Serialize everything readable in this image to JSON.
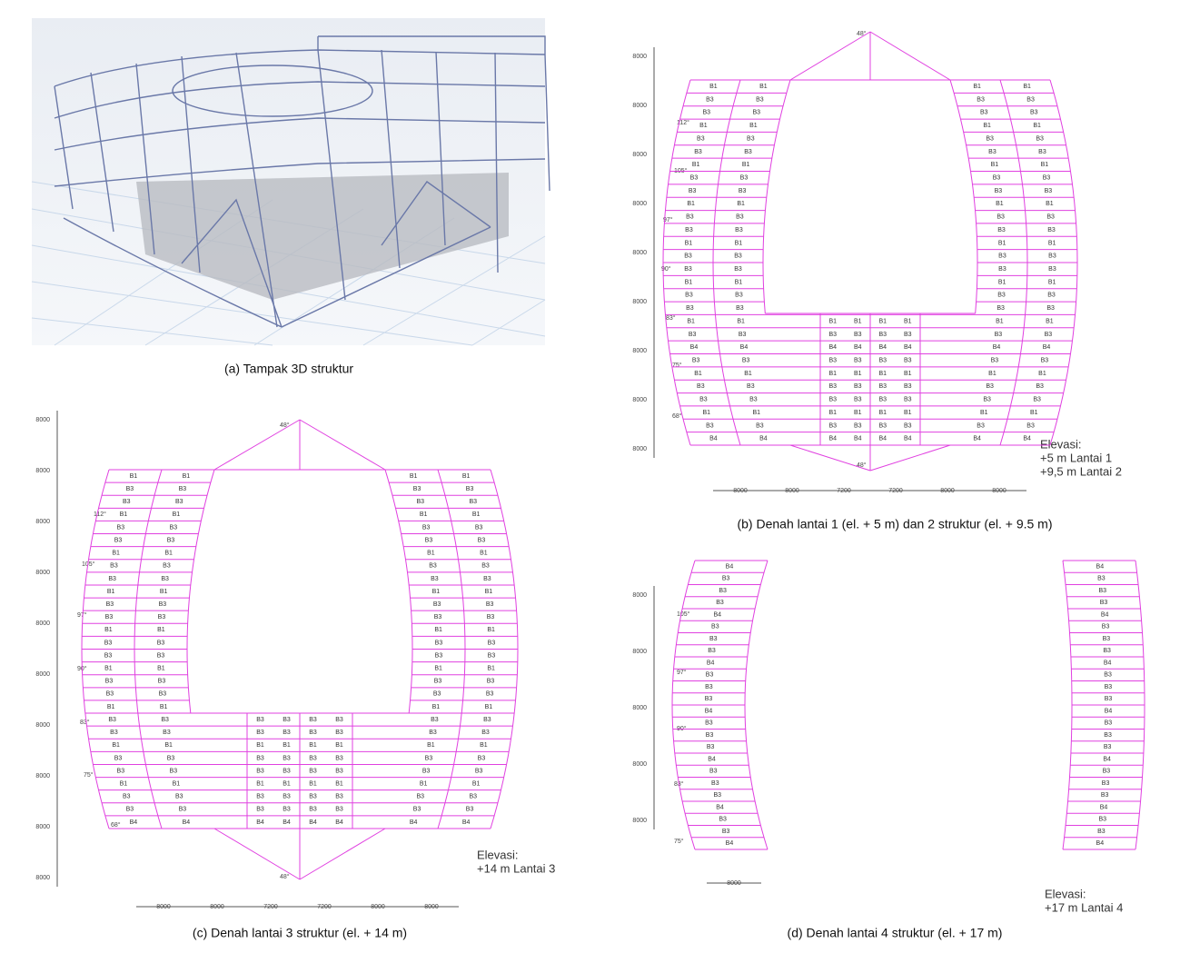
{
  "panels": [
    {
      "caption": "(a) Tampak 3D struktur"
    },
    {
      "caption": "(b) Denah lantai 1 (el. + 5 m) dan 2 struktur (el. + 9.5 m)",
      "elevation": [
        "Elevasi:",
        "+5 m Lantai 1",
        "+9,5 m Lantai 2"
      ],
      "dimensions_vertical": [
        "8000",
        "8000",
        "8000",
        "8000",
        "8000",
        "8000",
        "8000",
        "8000",
        "8000"
      ],
      "dimensions_horizontal": [
        "8000",
        "8000",
        "7200",
        "7200",
        "8000",
        "8000"
      ],
      "angles": [
        "48°",
        "112°",
        "105°",
        "97°",
        "90°",
        "83°",
        "75°",
        "68°",
        "48°"
      ],
      "beams": [
        "B1",
        "B3",
        "B3",
        "B1",
        "B3",
        "B3",
        "B1",
        "B3",
        "B3",
        "B1",
        "B3",
        "B3",
        "B1",
        "B3",
        "B3",
        "B1",
        "B3",
        "B3",
        "B1",
        "B3",
        "B4",
        "B3",
        "B1",
        "B3",
        "B3",
        "B1",
        "B3",
        "B4"
      ]
    },
    {
      "caption": "(c) Denah lantai 3 struktur (el. + 14 m)",
      "elevation": [
        "Elevasi:",
        "+14 m Lantai 3"
      ],
      "dimensions_vertical": [
        "8000",
        "8000",
        "8000",
        "8000",
        "8000",
        "8000",
        "8000",
        "8000",
        "8000",
        "8000"
      ],
      "dimensions_horizontal": [
        "8000",
        "8000",
        "7200",
        "7200",
        "8000",
        "8000"
      ],
      "angles": [
        "48°",
        "112°",
        "105°",
        "97°",
        "90°",
        "83°",
        "75°",
        "68°",
        "48°"
      ],
      "beams": [
        "B1",
        "B3",
        "B3",
        "B1",
        "B3",
        "B3",
        "B1",
        "B3",
        "B3",
        "B1",
        "B3",
        "B3",
        "B1",
        "B3",
        "B3",
        "B1",
        "B3",
        "B3",
        "B1",
        "B3",
        "B3",
        "B1",
        "B3",
        "B3",
        "B1",
        "B3",
        "B3",
        "B4"
      ]
    },
    {
      "caption": "(d) Denah lantai 4 struktur (el. + 17 m)",
      "elevation": [
        "Elevasi:",
        "+17 m Lantai 4"
      ],
      "dimensions_vertical": [
        "8000",
        "8000",
        "8000",
        "8000",
        "8000"
      ],
      "dimensions_horizontal": [
        "8000"
      ],
      "angles": [
        "105°",
        "97°",
        "90°",
        "83°",
        "75°"
      ],
      "beams": [
        "B4",
        "B3",
        "B3",
        "B3",
        "B4",
        "B3",
        "B3",
        "B3",
        "B4",
        "B3",
        "B3",
        "B3",
        "B4",
        "B3",
        "B3",
        "B3",
        "B4",
        "B3",
        "B3",
        "B3",
        "B4",
        "B3",
        "B3",
        "B4"
      ]
    }
  ]
}
